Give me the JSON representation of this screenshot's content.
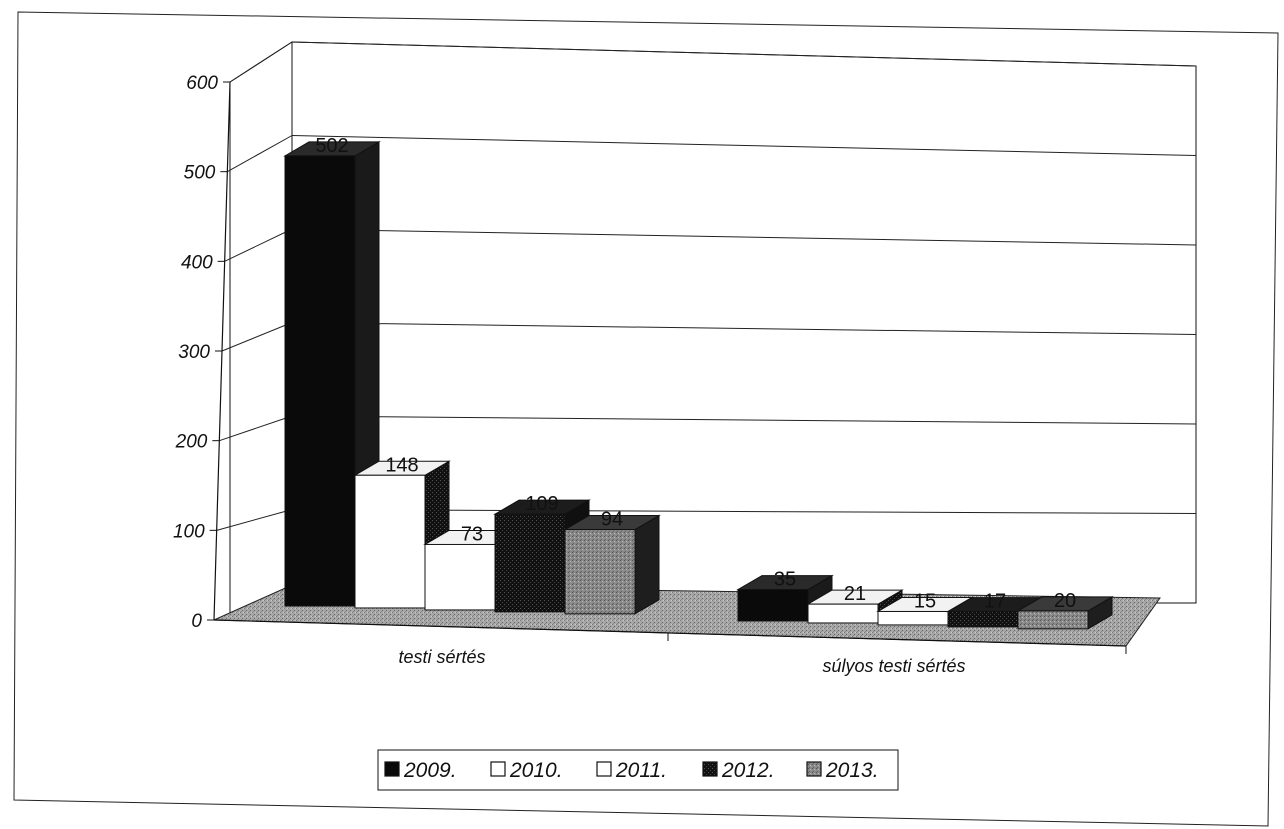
{
  "chart_data": {
    "type": "bar",
    "title": "",
    "xlabel": "",
    "ylabel": "",
    "categories": [
      "testi sértés",
      "súlyos testi sértés"
    ],
    "series": [
      {
        "name": "2009.",
        "values": [
          502,
          35
        ],
        "labels": [
          "502",
          "35"
        ]
      },
      {
        "name": "2010.",
        "values": [
          148,
          21
        ],
        "labels": [
          "148",
          "21"
        ]
      },
      {
        "name": "2011.",
        "values": [
          73,
          15
        ],
        "labels": [
          "73",
          "15"
        ]
      },
      {
        "name": "2012.",
        "values": [
          109,
          17
        ],
        "labels": [
          "109",
          "17"
        ]
      },
      {
        "name": "2013.",
        "values": [
          94,
          20
        ],
        "labels": [
          "94",
          "20"
        ]
      }
    ],
    "ylim": [
      0,
      600
    ],
    "yticks": [
      0,
      100,
      200,
      300,
      400,
      500,
      600
    ],
    "grid": true,
    "legend_position": "bottom",
    "style": "3d-clustered-columns",
    "series_fills": [
      "black",
      "white",
      "white",
      "black-hatched",
      "gray-speckled"
    ]
  }
}
